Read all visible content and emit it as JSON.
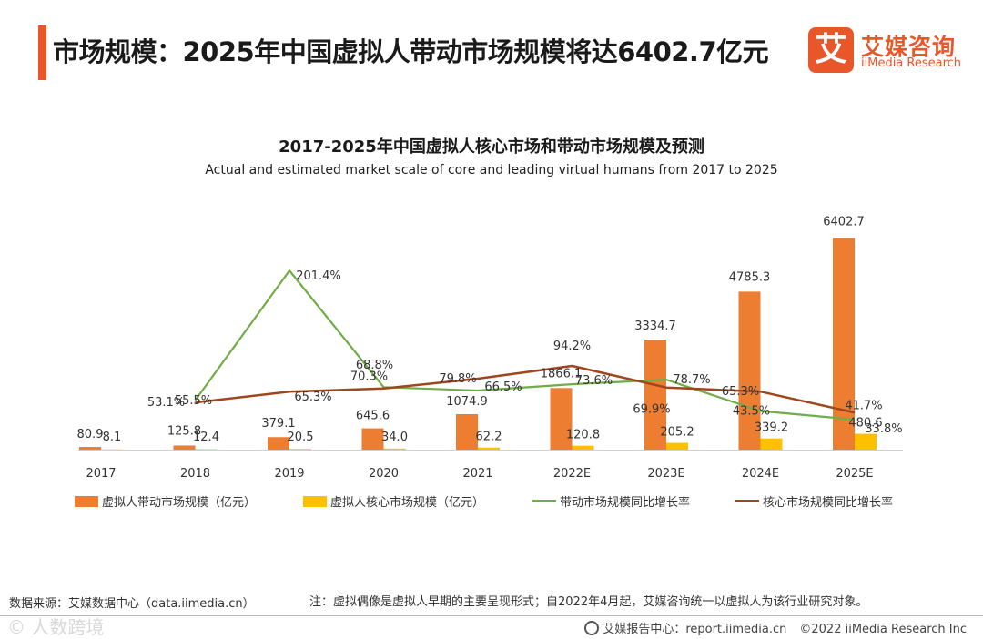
{
  "page": {
    "title": "市场规模：2025年中国虚拟人带动市场规模将达6402.7亿元"
  },
  "logo": {
    "badge": "艾",
    "cn": "艾媒咨询",
    "en": "iiMedia Research"
  },
  "chart_data": {
    "type": "bar",
    "title": "2017-2025年中国虚拟人核心市场和带动市场规模及预测",
    "subtitle": "Actual and estimated market scale of core and leading virtual humans from 2017 to 2025",
    "categories": [
      "2017",
      "2018",
      "2019",
      "2020",
      "2021",
      "2022E",
      "2023E",
      "2024E",
      "2025E"
    ],
    "series": [
      {
        "name": "虚拟人带动市场规模（亿元）",
        "kind": "bar",
        "color": "#ed7d31",
        "values": [
          80.9,
          125.8,
          379.1,
          645.6,
          1074.9,
          1866.1,
          3334.7,
          4785.3,
          6402.7
        ],
        "labels": [
          "80.9",
          "125.8",
          "379.1",
          "645.6",
          "1074.9",
          "1866.1",
          "3334.7",
          "4785.3",
          "6402.7"
        ]
      },
      {
        "name": "虚拟人核心市场规模（亿元）",
        "kind": "bar",
        "color": "#ffc000",
        "values": [
          8.1,
          12.4,
          20.5,
          34.0,
          62.2,
          120.8,
          205.2,
          339.2,
          480.6
        ],
        "labels": [
          "8.1",
          "12.4",
          "20.5",
          "34.0",
          "62.2",
          "120.8",
          "205.2",
          "339.2",
          "480.6"
        ]
      },
      {
        "name": "带动市场规模同比增长率",
        "kind": "line",
        "color": "#70ad47",
        "values": [
          null,
          55.5,
          201.4,
          70.3,
          66.5,
          73.6,
          78.7,
          43.5,
          33.8
        ],
        "labels": [
          null,
          "55.5%",
          "201.4%",
          "70.3%",
          "66.5%",
          "73.6%",
          "78.7%",
          "43.5%",
          "33.8%"
        ]
      },
      {
        "name": "核心市场规模同比增长率",
        "kind": "line",
        "color": "#a0461c",
        "values": [
          null,
          53.1,
          65.3,
          68.8,
          79.8,
          94.2,
          69.9,
          65.3,
          41.7
        ],
        "labels": [
          null,
          "53.1%",
          "65.3%",
          "68.8%",
          "79.8%",
          "94.2%",
          "69.9%",
          "65.3%",
          "41.7%"
        ]
      }
    ],
    "bar_axis_max": 7000,
    "rate_axis_max": 260,
    "xlabel": "",
    "ylabel": "",
    "legend_position": "bottom"
  },
  "source": "数据来源：艾媒数据中心（data.iimedia.cn）",
  "note": "注：虚拟偶像是虚拟人早期的主要呈现形式；自2022年4月起，艾媒咨询统一以虚拟人为该行业研究对象。",
  "watermark": "© 人数跨境",
  "footer": {
    "report": "艾媒报告中心：report.iimedia.cn",
    "copyright": "©2022 iiMedia Research Inc"
  }
}
